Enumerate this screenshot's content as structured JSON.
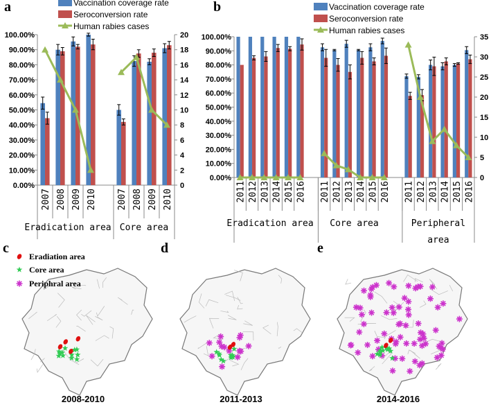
{
  "colors": {
    "vaccination": "#4F81BD",
    "seroconversion": "#C0504D",
    "cases": "#9BBB59",
    "peripheral": "#CC33CC",
    "core": "#33CC55",
    "eradication": "#E01010"
  },
  "chart_data": [
    {
      "panel": "a",
      "type": "bar+line",
      "legend": [
        "Vaccination coverage rate",
        "Seroconversion rate",
        "Human rabies cases"
      ],
      "groups": [
        "Eradication area",
        "Core area"
      ],
      "categories": [
        "2007",
        "2008",
        "2009",
        "2010"
      ],
      "left_ticks": [
        "0.00%",
        "10.00%",
        "20.00%",
        "30.00%",
        "40.00%",
        "50.00%",
        "60.00%",
        "70.00%",
        "80.00%",
        "90.00%",
        "100.00%"
      ],
      "right_ticks": [
        "0",
        "2",
        "4",
        "6",
        "8",
        "10",
        "12",
        "14",
        "16",
        "18",
        "20"
      ],
      "ylim": [
        0,
        100
      ],
      "y2lim": [
        0,
        20
      ],
      "series": [
        {
          "name": "Vaccination coverage rate",
          "values": [
            [
              54.5,
              90,
              95.5,
              100
            ],
            [
              50,
              82.5,
              82,
              91
            ]
          ],
          "errors": [
            [
              4,
              3.5,
              3,
              1
            ],
            [
              3.5,
              3.5,
              2,
              3
            ]
          ]
        },
        {
          "name": "Seroconversion rate",
          "values": [
            [
              44.5,
              89,
              92,
              93.5
            ],
            [
              42,
              87.5,
              88,
              93
            ]
          ],
          "errors": [
            [
              4,
              2.5,
              1.5,
              3.5
            ],
            [
              2,
              2.5,
              2.5,
              2.5
            ]
          ]
        },
        {
          "name": "Human rabies cases",
          "values": [
            [
              18,
              14,
              10,
              2
            ],
            [
              15,
              17,
              10,
              8
            ]
          ]
        }
      ]
    },
    {
      "panel": "b",
      "type": "bar+line",
      "legend": [
        "Vaccination coverage rate",
        "Seroconversion rate",
        "Human rabies cases"
      ],
      "groups": [
        "Eradication area",
        "Core area",
        "Peripheral area"
      ],
      "categories": [
        "2011",
        "2012",
        "2013",
        "2014",
        "2015",
        "2016"
      ],
      "left_ticks": [
        "0.00%",
        "10.00%",
        "20.00%",
        "30.00%",
        "40.00%",
        "50.00%",
        "60.00%",
        "70.00%",
        "80.00%",
        "90.00%",
        "100.00%"
      ],
      "right_ticks": [
        "0",
        "5",
        "10",
        "15",
        "20",
        "25",
        "30",
        "35"
      ],
      "ylim": [
        0,
        100
      ],
      "y2lim": [
        0,
        35
      ],
      "series": [
        {
          "name": "Vaccination coverage rate",
          "values": [
            [
              100,
              100,
              100,
              100,
              100,
              100
            ],
            [
              92.5,
              90.5,
              95,
              90.5,
              92.5,
              97
            ],
            [
              72,
              71.5,
              80,
              79,
              80,
              90.5
            ]
          ],
          "errors": [
            [
              0,
              0,
              0,
              0,
              0,
              0
            ],
            [
              2.5,
              0.5,
              2.5,
              0.5,
              2.5,
              2
            ],
            [
              1.5,
              1.5,
              3.5,
              2.5,
              1,
              2.5
            ]
          ]
        },
        {
          "name": "Seroconversion rate",
          "values": [
            [
              80,
              85,
              86,
              92,
              91.5,
              94.5
            ],
            [
              85,
              80,
              75,
              85,
              82.5,
              86.5
            ],
            [
              58,
              58.5,
              79,
              82.5,
              81,
              84
            ]
          ],
          "errors": [
            [
              0,
              1.5,
              3.5,
              2.5,
              1.5,
              4
            ],
            [
              6,
              4.5,
              5,
              4.5,
              2.5,
              5.5
            ],
            [
              2.5,
              4,
              6.5,
              2.5,
              0.5,
              3
            ]
          ]
        },
        {
          "name": "Human rabies cases",
          "values": [
            [
              0,
              0,
              0,
              0,
              0,
              0
            ],
            [
              6,
              3,
              2,
              0,
              0,
              0
            ],
            [
              33,
              20,
              9,
              12,
              8,
              5
            ]
          ]
        }
      ]
    }
  ],
  "maps": {
    "legend": [
      "Eradiation area",
      "Core area",
      "Periphral area"
    ],
    "panels": [
      {
        "letter": "c",
        "label": "2008-2010"
      },
      {
        "letter": "d",
        "label": "2011-2013"
      },
      {
        "letter": "e",
        "label": "2014-2016"
      }
    ]
  }
}
